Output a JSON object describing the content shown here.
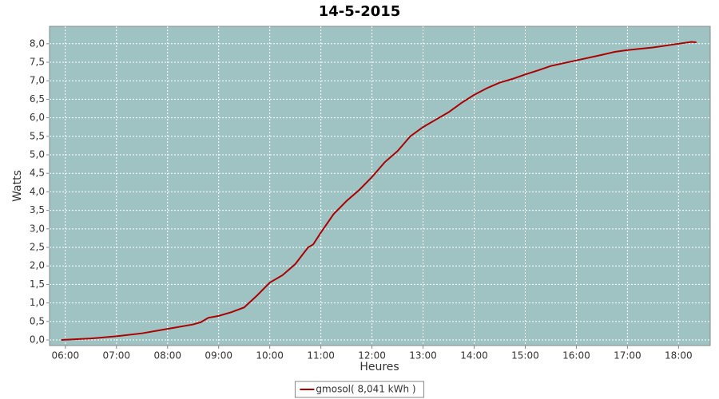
{
  "chart_data": {
    "type": "line",
    "title": "14-5-2015",
    "xlabel": "Heures",
    "ylabel": "Watts",
    "x": [
      5.92,
      6.5,
      7.0,
      7.5,
      8.0,
      8.5,
      8.65,
      8.8,
      9.0,
      9.25,
      9.5,
      9.75,
      10.0,
      10.25,
      10.5,
      10.75,
      10.85,
      11.0,
      11.25,
      11.5,
      11.75,
      12.0,
      12.25,
      12.5,
      12.75,
      13.0,
      13.25,
      13.5,
      13.75,
      14.0,
      14.25,
      14.5,
      14.75,
      15.0,
      15.25,
      15.5,
      16.0,
      16.5,
      16.75,
      17.0,
      17.5,
      18.0,
      18.25,
      18.35
    ],
    "series": [
      {
        "name": "gmosol( 8,041 kWh )",
        "color": "#aa0000",
        "values": [
          0.0,
          0.04,
          0.1,
          0.18,
          0.3,
          0.42,
          0.48,
          0.6,
          0.65,
          0.75,
          0.88,
          1.2,
          1.55,
          1.75,
          2.05,
          2.5,
          2.58,
          2.9,
          3.4,
          3.75,
          4.05,
          4.4,
          4.8,
          5.1,
          5.5,
          5.75,
          5.95,
          6.15,
          6.4,
          6.62,
          6.8,
          6.95,
          7.05,
          7.17,
          7.28,
          7.4,
          7.55,
          7.7,
          7.78,
          7.83,
          7.9,
          8.0,
          8.05,
          8.04
        ]
      }
    ],
    "xlim": [
      5.69,
      18.62
    ],
    "ylim": [
      -0.15,
      8.47
    ],
    "xticks": [
      {
        "value": 6,
        "label": "06:00"
      },
      {
        "value": 7,
        "label": "07:00"
      },
      {
        "value": 8,
        "label": "08:00"
      },
      {
        "value": 9,
        "label": "09:00"
      },
      {
        "value": 10,
        "label": "10:00"
      },
      {
        "value": 11,
        "label": "11:00"
      },
      {
        "value": 12,
        "label": "12:00"
      },
      {
        "value": 13,
        "label": "13:00"
      },
      {
        "value": 14,
        "label": "14:00"
      },
      {
        "value": 15,
        "label": "15:00"
      },
      {
        "value": 16,
        "label": "16:00"
      },
      {
        "value": 17,
        "label": "17:00"
      },
      {
        "value": 18,
        "label": "18:00"
      }
    ],
    "yticks": [
      {
        "value": 0,
        "label": "0,0"
      },
      {
        "value": 0.5,
        "label": "0,5"
      },
      {
        "value": 1,
        "label": "1,0"
      },
      {
        "value": 1.5,
        "label": "1,5"
      },
      {
        "value": 2,
        "label": "2,0"
      },
      {
        "value": 2.5,
        "label": "2,5"
      },
      {
        "value": 3,
        "label": "3,0"
      },
      {
        "value": 3.5,
        "label": "3,5"
      },
      {
        "value": 4,
        "label": "4,0"
      },
      {
        "value": 4.5,
        "label": "4,5"
      },
      {
        "value": 5,
        "label": "5,0"
      },
      {
        "value": 5.5,
        "label": "5,5"
      },
      {
        "value": 6,
        "label": "6,0"
      },
      {
        "value": 6.5,
        "label": "6,5"
      },
      {
        "value": 7,
        "label": "7,0"
      },
      {
        "value": 7.5,
        "label": "7,5"
      },
      {
        "value": 8,
        "label": "8,0"
      }
    ],
    "grid": true,
    "legend": "bottom",
    "plot_background": "#9fc3c3"
  }
}
